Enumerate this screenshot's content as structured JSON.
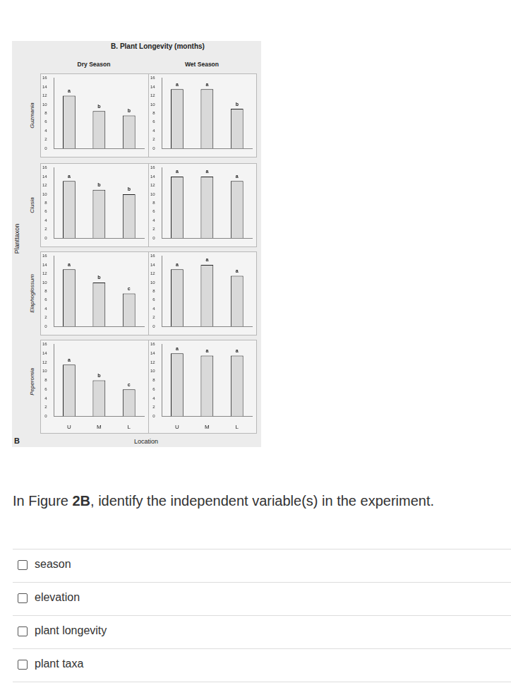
{
  "chart_data": [
    {
      "type": "bar",
      "categories": [
        "U",
        "M",
        "L"
      ],
      "values": [
        12,
        8.5,
        7.5
      ],
      "annotations": [
        "a",
        "b",
        "b"
      ],
      "ylim": [
        0,
        16
      ],
      "yticks": [
        0,
        2,
        4,
        6,
        8,
        10,
        12,
        14,
        16
      ],
      "grid": false,
      "color": "#d9d9d9",
      "tick_labels": "y"
    },
    {
      "type": "bar",
      "categories": [
        "U",
        "M",
        "L"
      ],
      "values": [
        13.5,
        13.5,
        9
      ],
      "annotations": [
        "a",
        "a",
        "b"
      ],
      "ylim": [
        0,
        16
      ],
      "yticks": [
        0,
        2,
        4,
        6,
        8,
        10,
        12,
        14,
        16
      ],
      "grid": false,
      "color": "#d9d9d9",
      "tick_labels": "y"
    },
    {
      "type": "bar",
      "categories": [
        "U",
        "M",
        "L"
      ],
      "values": [
        13,
        11,
        10
      ],
      "annotations": [
        "a",
        "b",
        "b"
      ],
      "ylim": [
        0,
        16
      ],
      "yticks": [
        0,
        2,
        4,
        6,
        8,
        10,
        12,
        14,
        16
      ],
      "grid": false,
      "color": "#d9d9d9",
      "tick_labels": "y"
    },
    {
      "type": "bar",
      "categories": [
        "U",
        "M",
        "L"
      ],
      "values": [
        14,
        14,
        13
      ],
      "annotations": [
        "a",
        "a",
        "a"
      ],
      "ylim": [
        0,
        16
      ],
      "yticks": [
        0,
        2,
        4,
        6,
        8,
        10,
        12,
        14,
        16
      ],
      "grid": false,
      "color": "#d9d9d9",
      "tick_labels": "y"
    },
    {
      "type": "bar",
      "categories": [
        "U",
        "M",
        "L"
      ],
      "values": [
        13,
        10,
        7.5
      ],
      "annotations": [
        "a",
        "b",
        "c"
      ],
      "ylim": [
        0,
        16
      ],
      "yticks": [
        0,
        2,
        4,
        6,
        8,
        10,
        12,
        14,
        16
      ],
      "grid": false,
      "color": "#d9d9d9",
      "tick_labels": "y"
    },
    {
      "type": "bar",
      "categories": [
        "U",
        "M",
        "L"
      ],
      "values": [
        13,
        14,
        11.5
      ],
      "annotations": [
        "a",
        "a",
        "a"
      ],
      "ylim": [
        0,
        16
      ],
      "yticks": [
        0,
        2,
        4,
        6,
        8,
        10,
        12,
        14,
        16
      ],
      "grid": false,
      "color": "#d9d9d9",
      "tick_labels": "y"
    },
    {
      "type": "bar",
      "categories": [
        "U",
        "M",
        "L"
      ],
      "values": [
        11.5,
        8,
        6
      ],
      "annotations": [
        "a",
        "b",
        "c"
      ],
      "ylim": [
        0,
        16
      ],
      "yticks": [
        0,
        2,
        4,
        6,
        8,
        10,
        12,
        14,
        16
      ],
      "grid": false,
      "color": "#d9d9d9"
    },
    {
      "type": "bar",
      "categories": [
        "U",
        "M",
        "L"
      ],
      "values": [
        14,
        13.5,
        13.5
      ],
      "annotations": [
        "a",
        "a",
        "a"
      ],
      "ylim": [
        0,
        16
      ],
      "yticks": [
        0,
        2,
        4,
        6,
        8,
        10,
        12,
        14,
        16
      ],
      "grid": false,
      "color": "#d9d9d9"
    }
  ],
  "figure": {
    "title": "B. Plant Longevity (months)",
    "panel_letter": "B",
    "row_axis_label": "Planttaxon",
    "x_axis_label": "Location",
    "columns": [
      "Dry Season",
      "Wet Season"
    ],
    "rows": [
      "Guzmania",
      "Clusia",
      "Elaphoglossum",
      "Peperomia"
    ]
  },
  "question": {
    "before": "In Figure ",
    "bold": "2B",
    "after": ", identify the independent variable(s) in the experiment."
  },
  "options": [
    "season",
    "elevation",
    "plant longevity",
    "plant taxa"
  ]
}
